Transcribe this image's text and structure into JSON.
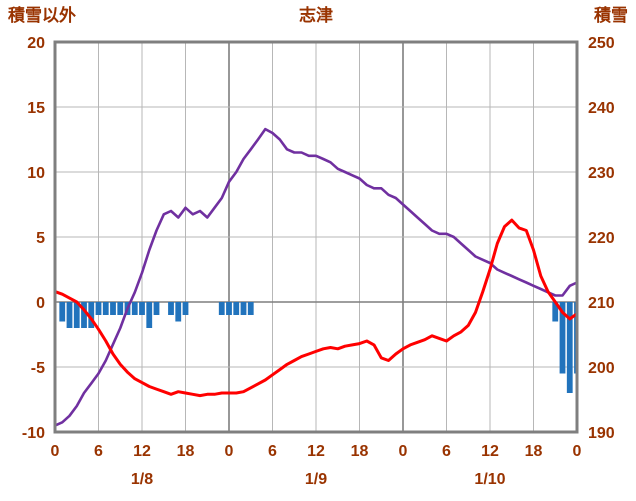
{
  "colors": {
    "text": "#993300",
    "frame": "#7f7f7f",
    "grid_major": "#7f7f7f",
    "grid_minor": "#b7b7b7",
    "background": "#ffffff"
  },
  "chart_data": {
    "type": "line+bar",
    "title": "志津",
    "grid": true,
    "legend": "none",
    "left_axis": {
      "label": "積雪以外",
      "min": -10,
      "max": 20,
      "ticks": [
        20,
        15,
        10,
        5,
        0,
        -5,
        -10
      ]
    },
    "right_axis": {
      "label": "積雪",
      "min": 190,
      "max": 250,
      "ticks": [
        250,
        240,
        230,
        220,
        210,
        200,
        190
      ]
    },
    "x_axis": {
      "hours_span": 72,
      "tick_every": 6,
      "tick_labels": [
        "0",
        "6",
        "12",
        "18",
        "0",
        "6",
        "12",
        "18",
        "0",
        "6",
        "12",
        "18",
        "0"
      ],
      "day_labels": [
        {
          "label": "1/8",
          "center_hour": 12
        },
        {
          "label": "1/9",
          "center_hour": 36
        },
        {
          "label": "1/10",
          "center_hour": 60
        }
      ]
    },
    "series": [
      {
        "name": "precipitation",
        "type": "bar",
        "axis": "left",
        "color": "#2173bc",
        "x": [
          1,
          2,
          3,
          4,
          5,
          6,
          7,
          8,
          9,
          10,
          11,
          12,
          13,
          14,
          16,
          17,
          18,
          23,
          24,
          25,
          26,
          27,
          69,
          70,
          71,
          72
        ],
        "values": [
          -1.5,
          -2,
          -2,
          -2,
          -2,
          -1,
          -1,
          -1,
          -1,
          -1,
          -1,
          -1,
          -2,
          -1,
          -1,
          -1.5,
          -1,
          -1,
          -1,
          -1,
          -1,
          -1,
          -1.5,
          -5.5,
          -7,
          -5.5
        ]
      },
      {
        "name": "snow-depth",
        "type": "line",
        "axis": "right",
        "color": "#7030a0",
        "width": 2.6,
        "x": [
          0,
          1,
          2,
          3,
          4,
          5,
          6,
          7,
          8,
          9,
          10,
          11,
          12,
          13,
          14,
          15,
          16,
          17,
          18,
          19,
          20,
          21,
          22,
          23,
          24,
          25,
          26,
          27,
          28,
          29,
          30,
          31,
          32,
          33,
          34,
          35,
          36,
          37,
          38,
          39,
          40,
          41,
          42,
          43,
          44,
          45,
          46,
          47,
          48,
          49,
          50,
          51,
          52,
          53,
          54,
          55,
          56,
          57,
          58,
          59,
          60,
          61,
          62,
          63,
          64,
          65,
          66,
          67,
          68,
          69,
          70,
          71,
          72
        ],
        "values": [
          191,
          191.5,
          192.5,
          194,
          196,
          197.5,
          199,
          201,
          203.5,
          206,
          209,
          211.5,
          214.5,
          218,
          221,
          223.5,
          224,
          223,
          224.5,
          223.5,
          224,
          223,
          224.5,
          226,
          228.5,
          230,
          232,
          233.5,
          235,
          236.6,
          236,
          235,
          233.5,
          233,
          233,
          232.5,
          232.5,
          232,
          231.5,
          230.5,
          230,
          229.5,
          229,
          228,
          227.5,
          227.5,
          226.5,
          226,
          225,
          224,
          223,
          222,
          221,
          220.5,
          220.5,
          220,
          219,
          218,
          217,
          216.5,
          216,
          215,
          214.5,
          214,
          213.5,
          213,
          212.5,
          212,
          211.5,
          211,
          211,
          212.5,
          213
        ]
      },
      {
        "name": "temperature",
        "type": "line",
        "axis": "left",
        "color": "#ff0000",
        "width": 3,
        "x": [
          0,
          1,
          2,
          3,
          4,
          5,
          6,
          7,
          8,
          9,
          10,
          11,
          12,
          13,
          14,
          15,
          16,
          17,
          18,
          19,
          20,
          21,
          22,
          23,
          24,
          25,
          26,
          27,
          28,
          29,
          30,
          31,
          32,
          33,
          34,
          35,
          36,
          37,
          38,
          39,
          40,
          41,
          42,
          43,
          44,
          45,
          46,
          47,
          48,
          49,
          50,
          51,
          52,
          53,
          54,
          55,
          56,
          57,
          58,
          59,
          60,
          61,
          62,
          63,
          64,
          65,
          66,
          67,
          68,
          69,
          70,
          71,
          72
        ],
        "values": [
          0.8,
          0.6,
          0.3,
          0,
          -0.6,
          -1.3,
          -2.1,
          -3,
          -4,
          -4.8,
          -5.4,
          -5.9,
          -6.2,
          -6.5,
          -6.7,
          -6.9,
          -7.1,
          -6.9,
          -7,
          -7.1,
          -7.2,
          -7.1,
          -7.1,
          -7,
          -7,
          -7,
          -6.9,
          -6.6,
          -6.3,
          -6,
          -5.6,
          -5.2,
          -4.8,
          -4.5,
          -4.2,
          -4,
          -3.8,
          -3.6,
          -3.5,
          -3.6,
          -3.4,
          -3.3,
          -3.2,
          -3,
          -3.3,
          -4.3,
          -4.5,
          -4,
          -3.6,
          -3.3,
          -3.1,
          -2.9,
          -2.6,
          -2.8,
          -3,
          -2.6,
          -2.3,
          -1.8,
          -0.8,
          0.8,
          2.5,
          4.5,
          5.8,
          6.3,
          5.7,
          5.5,
          4,
          2,
          0.8,
          0,
          -0.8,
          -1.3,
          -0.9
        ]
      }
    ]
  }
}
